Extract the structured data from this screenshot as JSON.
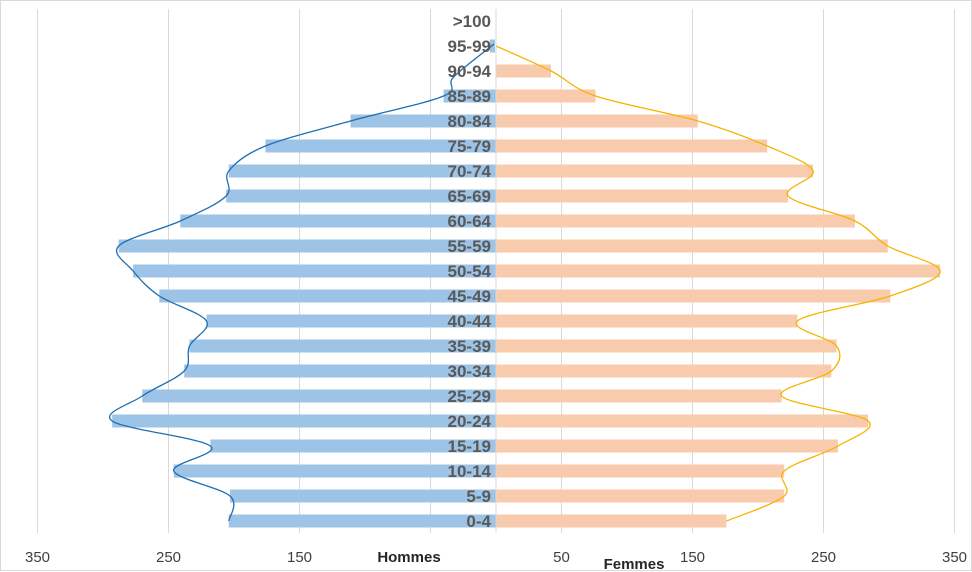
{
  "chart_data": {
    "type": "bar",
    "orientation": "horizontal",
    "layout": "population-pyramid",
    "categories": [
      "0-4",
      "5-9",
      "10-14",
      "15-19",
      "20-24",
      "25-29",
      "30-34",
      "35-39",
      "40-44",
      "45-49",
      "50-54",
      "55-59",
      "60-64",
      "65-69",
      "70-74",
      "75-79",
      "80-84",
      "85-89",
      "90-94",
      "95-99",
      ">100"
    ],
    "series": [
      {
        "name": "Hommes",
        "side": "left",
        "color": "#9dc3e6",
        "curve_color": "#1f6fb0",
        "values": [
          204,
          203,
          246,
          218,
          293,
          270,
          238,
          234,
          221,
          257,
          277,
          288,
          241,
          206,
          204,
          176,
          111,
          40,
          0,
          0,
          0
        ]
      },
      {
        "name": "Femmes",
        "side": "right",
        "color": "#f8cbad",
        "curve_color": "#f5b400",
        "values": [
          176,
          220,
          220,
          261,
          284,
          218,
          256,
          260,
          230,
          301,
          339,
          299,
          274,
          223,
          242,
          207,
          154,
          76,
          42,
          0,
          0
        ]
      }
    ],
    "x_ticks_left": [
      "350",
      "250",
      "150"
    ],
    "x_ticks_right": [
      "50",
      "150",
      "250",
      "350"
    ],
    "xlabel_left": "Hommes",
    "xlabel_right": "Femmes",
    "xlim": [
      -350,
      350
    ],
    "grid": true
  }
}
